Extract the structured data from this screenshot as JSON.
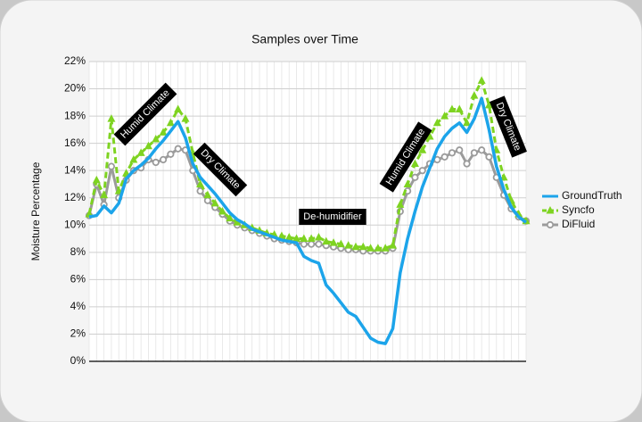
{
  "chart_data": {
    "type": "line",
    "title": "Samples over Time",
    "y_label": "Moisture Percentage",
    "categories": [
      null,
      null,
      null,
      null,
      null,
      null,
      null,
      null,
      null,
      null,
      null,
      null,
      null,
      null,
      null,
      null,
      null,
      null,
      null,
      null,
      null,
      null,
      null,
      null,
      null,
      null,
      null,
      null,
      null,
      null,
      null,
      null,
      null,
      null,
      null,
      null,
      null,
      null,
      null,
      null,
      null,
      null,
      null,
      null,
      null,
      null,
      null,
      null,
      null,
      null,
      null,
      null,
      null,
      null,
      null,
      null,
      null,
      null,
      null,
      null
    ],
    "series": [
      {
        "name": "GroundTruth",
        "color": "#1ca4ea",
        "marker": "none",
        "dashed": false,
        "values": [
          10.6,
          10.7,
          11.4,
          10.9,
          11.6,
          13.4,
          14.0,
          14.4,
          14.9,
          15.6,
          16.2,
          16.9,
          17.6,
          16.4,
          14.5,
          13.5,
          12.9,
          12.3,
          11.6,
          10.9,
          10.4,
          10.1,
          9.7,
          9.5,
          9.3,
          9.1,
          8.9,
          8.8,
          8.7,
          7.7,
          7.4,
          7.2,
          5.6,
          5.0,
          4.3,
          3.6,
          3.3,
          2.5,
          1.7,
          1.4,
          1.3,
          2.4,
          6.5,
          9.0,
          11.0,
          12.8,
          14.2,
          15.6,
          16.5,
          17.1,
          17.5,
          16.8,
          17.8,
          19.3,
          17.0,
          14.3,
          12.6,
          11.3,
          10.6,
          10.2
        ]
      },
      {
        "name": "Syncfo",
        "color": "#7ed321",
        "marker": "triangle",
        "dashed": true,
        "values": [
          10.8,
          13.3,
          12.2,
          17.8,
          12.5,
          13.8,
          14.8,
          15.3,
          15.8,
          16.3,
          16.8,
          17.5,
          18.5,
          17.8,
          15.3,
          13.0,
          12.2,
          11.6,
          11.0,
          10.5,
          10.2,
          10.0,
          9.8,
          9.6,
          9.4,
          9.3,
          9.2,
          9.1,
          9.0,
          9.0,
          9.0,
          9.1,
          8.8,
          8.7,
          8.6,
          8.5,
          8.4,
          8.4,
          8.3,
          8.3,
          8.3,
          8.5,
          11.5,
          13.0,
          14.5,
          15.5,
          16.5,
          17.5,
          18.0,
          18.5,
          18.5,
          17.5,
          19.5,
          20.6,
          18.8,
          15.5,
          13.5,
          11.8,
          10.8,
          10.3
        ]
      },
      {
        "name": "DiFluid",
        "color": "#9b9b9b",
        "marker": "circle",
        "dashed": false,
        "values": [
          10.7,
          13.0,
          11.5,
          14.3,
          12.0,
          13.3,
          14.0,
          14.2,
          14.8,
          14.6,
          14.8,
          15.2,
          15.6,
          15.5,
          14.0,
          12.5,
          11.8,
          11.3,
          10.8,
          10.3,
          10.0,
          9.8,
          9.6,
          9.4,
          9.2,
          9.0,
          8.9,
          8.8,
          8.7,
          8.6,
          8.6,
          8.6,
          8.5,
          8.4,
          8.3,
          8.2,
          8.2,
          8.1,
          8.1,
          8.1,
          8.1,
          8.3,
          11.0,
          12.5,
          13.5,
          14.0,
          14.5,
          14.8,
          15.0,
          15.3,
          15.5,
          14.5,
          15.3,
          15.5,
          15.0,
          13.5,
          12.2,
          11.2,
          10.6,
          10.3
        ]
      }
    ],
    "ylim": [
      0,
      22
    ],
    "yticks": [
      {
        "value": 0,
        "label": "0%"
      },
      {
        "value": 2,
        "label": "2%"
      },
      {
        "value": 4,
        "label": "4%"
      },
      {
        "value": 6,
        "label": "6%"
      },
      {
        "value": 8,
        "label": "8%"
      },
      {
        "value": 10,
        "label": "10%"
      },
      {
        "value": 12,
        "label": "12%"
      },
      {
        "value": 14,
        "label": "14%"
      },
      {
        "value": 16,
        "label": "16%"
      },
      {
        "value": 18,
        "label": "18%"
      },
      {
        "value": 20,
        "label": "20%"
      },
      {
        "value": 22,
        "label": "22%"
      }
    ],
    "grid": true,
    "legend": "right",
    "annotations": [
      "Humid Climate",
      "Dry Climate",
      "De-humidifier",
      "Humid Climate",
      "Dry Climate"
    ]
  }
}
